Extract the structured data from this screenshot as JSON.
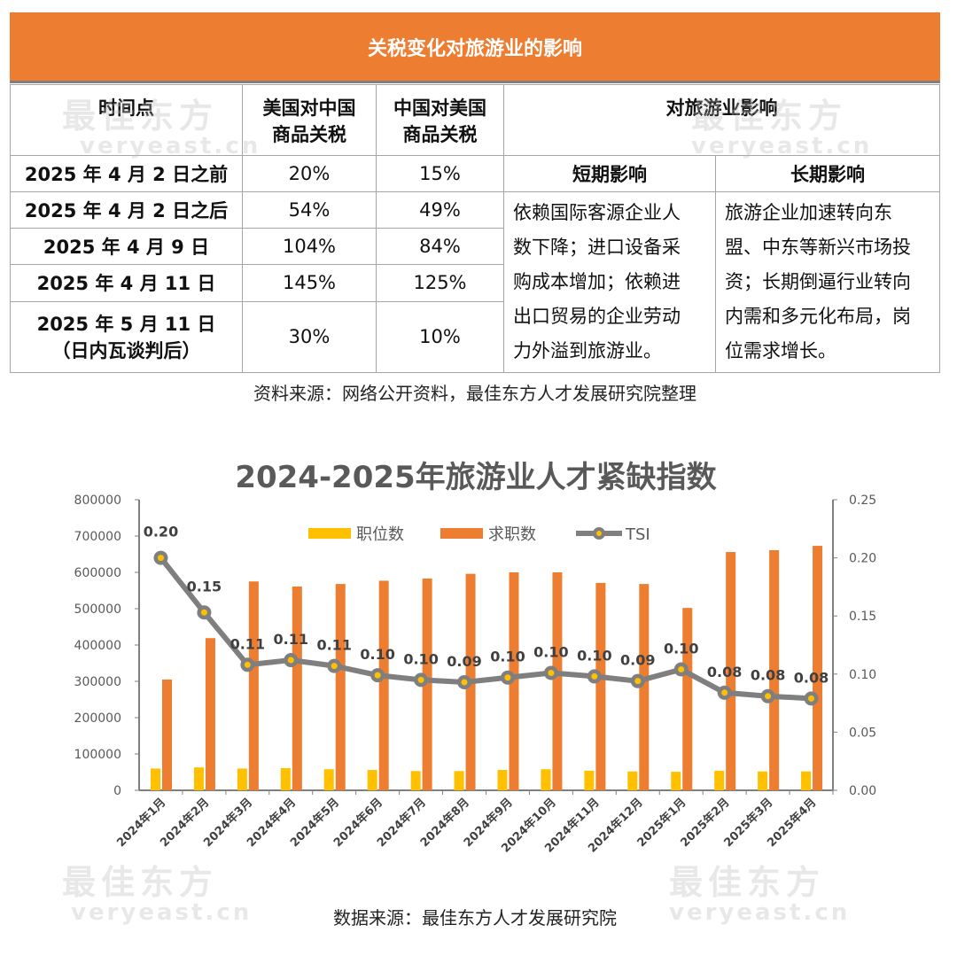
{
  "watermark": {
    "cn": "最佳东方",
    "en": "veryeast.cn"
  },
  "table": {
    "title": "关税变化对旅游业的影响",
    "headers": {
      "time": "时间点",
      "us_on_cn": [
        "美国对中国",
        "商品关税"
      ],
      "cn_on_us": [
        "中国对美国",
        "商品关税"
      ],
      "impact": "对旅游业影响",
      "short": "短期影响",
      "long": "长期影响"
    },
    "rows": [
      {
        "time": "2025 年 4 月 2 日之前",
        "us": "20%",
        "cn": "15%"
      },
      {
        "time": "2025 年 4 月 2 日之后",
        "us": "54%",
        "cn": "49%"
      },
      {
        "time": "2025 年 4 月 9 日",
        "us": "104%",
        "cn": "84%"
      },
      {
        "time": "2025 年 4 月 11 日",
        "us": "145%",
        "cn": "125%"
      },
      {
        "time": "2025 年 5 月 11 日",
        "time2": "（日内瓦谈判后）",
        "us": "30%",
        "cn": "10%"
      }
    ],
    "short_impact": [
      "依赖国际客源企业人",
      "数下降；进口设备采",
      "购成本增加；依赖进",
      "出口贸易的企业劳动",
      "力外溢到旅游业。"
    ],
    "long_impact": [
      "旅游企业加速转向东",
      "盟、中东等新兴市场投",
      "资；长期倒逼行业转向",
      "内需和多元化布局，岗",
      "位需求增长。"
    ],
    "source": "资料来源：网络公开资料，最佳东方人才发展研究院整理"
  },
  "chart_data": {
    "type": "bar+line",
    "title": "2024-2025年旅游业人才紧缺指数",
    "categories": [
      "2024年1月",
      "2024年2月",
      "2024年3月",
      "2024年4月",
      "2024年5月",
      "2024年6月",
      "2024年7月",
      "2024年8月",
      "2024年9月",
      "2024年10月",
      "2024年11月",
      "2024年12月",
      "2025年1月",
      "2025年2月",
      "2025年3月",
      "2025年4月"
    ],
    "series": [
      {
        "name": "职位数",
        "type": "bar",
        "axis": "left",
        "color": "#FFC000",
        "values": [
          60000,
          63000,
          60000,
          61000,
          58000,
          56000,
          53000,
          53000,
          56000,
          58000,
          54000,
          52000,
          51000,
          54000,
          52000,
          52000
        ]
      },
      {
        "name": "求职数",
        "type": "bar",
        "axis": "left",
        "color": "#ED7D31",
        "values": [
          305000,
          419000,
          575000,
          561000,
          568000,
          577000,
          583000,
          596000,
          600000,
          600000,
          571000,
          568000,
          502000,
          656000,
          661000,
          673000
        ]
      },
      {
        "name": "TSI",
        "type": "line",
        "axis": "right",
        "color": "#7F7F7F",
        "values": [
          0.2,
          0.153,
          0.108,
          0.112,
          0.107,
          0.099,
          0.095,
          0.093,
          0.097,
          0.101,
          0.098,
          0.094,
          0.104,
          0.084,
          0.081,
          0.079
        ],
        "labels": [
          "0.20",
          "0.15",
          "0.11",
          "0.11",
          "0.11",
          "0.10",
          "0.10",
          "0.09",
          "0.10",
          "0.10",
          "0.10",
          "0.09",
          "0.10",
          "0.08",
          "0.08",
          "0.08"
        ]
      }
    ],
    "left_axis": {
      "ylim": [
        0,
        800000
      ],
      "ticks": [
        "0",
        "100000",
        "200000",
        "300000",
        "400000",
        "500000",
        "600000",
        "700000",
        "800000"
      ]
    },
    "right_axis": {
      "ylim": [
        0,
        0.25
      ],
      "ticks": [
        "0.00",
        "0.05",
        "0.10",
        "0.15",
        "0.20",
        "0.25"
      ]
    },
    "legend": "top-center",
    "grid": false,
    "source": "数据来源：最佳东方人才发展研究院"
  }
}
